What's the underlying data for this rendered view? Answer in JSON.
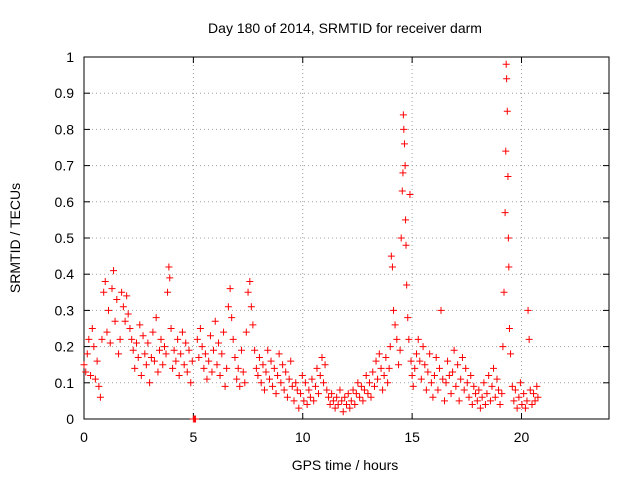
{
  "chart_data": {
    "type": "scatter",
    "title": "Day 180 of 2014, SRMTID for receiver darm",
    "xlabel": "GPS time / hours",
    "ylabel": "SRMTID / TECUs",
    "xlim": [
      0,
      24
    ],
    "ylim": [
      0,
      1
    ],
    "xticks": [
      0,
      5,
      10,
      15,
      20
    ],
    "xtick_labels": [
      "0",
      "5",
      "10",
      "15",
      "20"
    ],
    "yticks": [
      0,
      0.1,
      0.2,
      0.3,
      0.4,
      0.5,
      0.6,
      0.7,
      0.8,
      0.9,
      1
    ],
    "ytick_labels": [
      "0",
      "0.1",
      "0.2",
      "0.3",
      "0.4",
      "0.5",
      "0.6",
      "0.7",
      "0.8",
      "0.9",
      "1"
    ],
    "grid": true,
    "marker": "+",
    "color": "#ff0000",
    "series": [
      {
        "name": "SRMTID",
        "points": [
          [
            0.0,
            0.15
          ],
          [
            0.08,
            0.13
          ],
          [
            0.15,
            0.18
          ],
          [
            0.22,
            0.22
          ],
          [
            0.3,
            0.12
          ],
          [
            0.38,
            0.25
          ],
          [
            0.45,
            0.2
          ],
          [
            0.52,
            0.11
          ],
          [
            0.6,
            0.16
          ],
          [
            0.68,
            0.09
          ],
          [
            0.75,
            0.06
          ],
          [
            0.82,
            0.22
          ],
          [
            0.9,
            0.35
          ],
          [
            0.97,
            0.38
          ],
          [
            1.05,
            0.24
          ],
          [
            1.12,
            0.3
          ],
          [
            1.2,
            0.21
          ],
          [
            1.28,
            0.36
          ],
          [
            1.35,
            0.41
          ],
          [
            1.42,
            0.27
          ],
          [
            1.5,
            0.33
          ],
          [
            1.58,
            0.18
          ],
          [
            1.65,
            0.22
          ],
          [
            1.72,
            0.35
          ],
          [
            1.8,
            0.31
          ],
          [
            1.88,
            0.27
          ],
          [
            1.95,
            0.34
          ],
          [
            2.02,
            0.29
          ],
          [
            2.1,
            0.25
          ],
          [
            2.18,
            0.22
          ],
          [
            2.25,
            0.19
          ],
          [
            2.32,
            0.14
          ],
          [
            2.4,
            0.21
          ],
          [
            2.48,
            0.17
          ],
          [
            2.55,
            0.26
          ],
          [
            2.62,
            0.12
          ],
          [
            2.7,
            0.23
          ],
          [
            2.78,
            0.18
          ],
          [
            2.85,
            0.15
          ],
          [
            2.92,
            0.21
          ],
          [
            3.0,
            0.1
          ],
          [
            3.08,
            0.17
          ],
          [
            3.15,
            0.24
          ],
          [
            3.22,
            0.16
          ],
          [
            3.3,
            0.28
          ],
          [
            3.38,
            0.13
          ],
          [
            3.45,
            0.19
          ],
          [
            3.52,
            0.22
          ],
          [
            3.6,
            0.15
          ],
          [
            3.68,
            0.2
          ],
          [
            3.75,
            0.18
          ],
          [
            3.82,
            0.35
          ],
          [
            3.88,
            0.42
          ],
          [
            3.92,
            0.39
          ],
          [
            3.98,
            0.25
          ],
          [
            4.05,
            0.14
          ],
          [
            4.12,
            0.19
          ],
          [
            4.2,
            0.16
          ],
          [
            4.28,
            0.22
          ],
          [
            4.35,
            0.12
          ],
          [
            4.42,
            0.18
          ],
          [
            4.5,
            0.24
          ],
          [
            4.58,
            0.15
          ],
          [
            4.65,
            0.21
          ],
          [
            4.72,
            0.13
          ],
          [
            4.8,
            0.19
          ],
          [
            4.88,
            0.1
          ],
          [
            4.95,
            0.16
          ],
          [
            5.0,
            0.0
          ],
          [
            5.05,
            0.0
          ],
          [
            5.1,
            0.0
          ],
          [
            5.18,
            0.22
          ],
          [
            5.25,
            0.17
          ],
          [
            5.32,
            0.25
          ],
          [
            5.4,
            0.2
          ],
          [
            5.48,
            0.14
          ],
          [
            5.55,
            0.18
          ],
          [
            5.62,
            0.11
          ],
          [
            5.7,
            0.16
          ],
          [
            5.78,
            0.23
          ],
          [
            5.85,
            0.13
          ],
          [
            5.92,
            0.19
          ],
          [
            6.0,
            0.27
          ],
          [
            6.08,
            0.15
          ],
          [
            6.15,
            0.21
          ],
          [
            6.22,
            0.12
          ],
          [
            6.3,
            0.18
          ],
          [
            6.38,
            0.24
          ],
          [
            6.45,
            0.09
          ],
          [
            6.52,
            0.14
          ],
          [
            6.6,
            0.31
          ],
          [
            6.68,
            0.36
          ],
          [
            6.75,
            0.28
          ],
          [
            6.82,
            0.22
          ],
          [
            6.9,
            0.17
          ],
          [
            6.98,
            0.11
          ],
          [
            7.05,
            0.14
          ],
          [
            7.12,
            0.09
          ],
          [
            7.2,
            0.19
          ],
          [
            7.28,
            0.13
          ],
          [
            7.35,
            0.1
          ],
          [
            7.42,
            0.24
          ],
          [
            7.5,
            0.35
          ],
          [
            7.58,
            0.38
          ],
          [
            7.65,
            0.31
          ],
          [
            7.72,
            0.26
          ],
          [
            7.8,
            0.19
          ],
          [
            7.88,
            0.14
          ],
          [
            7.95,
            0.12
          ],
          [
            8.02,
            0.17
          ],
          [
            8.1,
            0.1
          ],
          [
            8.18,
            0.15
          ],
          [
            8.25,
            0.08
          ],
          [
            8.32,
            0.13
          ],
          [
            8.4,
            0.19
          ],
          [
            8.48,
            0.11
          ],
          [
            8.55,
            0.16
          ],
          [
            8.62,
            0.09
          ],
          [
            8.7,
            0.14
          ],
          [
            8.78,
            0.07
          ],
          [
            8.85,
            0.12
          ],
          [
            8.92,
            0.18
          ],
          [
            9.0,
            0.1
          ],
          [
            9.08,
            0.15
          ],
          [
            9.15,
            0.08
          ],
          [
            9.22,
            0.13
          ],
          [
            9.3,
            0.06
          ],
          [
            9.38,
            0.11
          ],
          [
            9.45,
            0.16
          ],
          [
            9.52,
            0.09
          ],
          [
            9.6,
            0.05
          ],
          [
            9.68,
            0.1
          ],
          [
            9.75,
            0.08
          ],
          [
            9.82,
            0.03
          ],
          [
            9.9,
            0.07
          ],
          [
            9.98,
            0.12
          ],
          [
            10.05,
            0.05
          ],
          [
            10.12,
            0.1
          ],
          [
            10.2,
            0.04
          ],
          [
            10.28,
            0.08
          ],
          [
            10.35,
            0.06
          ],
          [
            10.42,
            0.11
          ],
          [
            10.5,
            0.05
          ],
          [
            10.58,
            0.09
          ],
          [
            10.65,
            0.14
          ],
          [
            10.72,
            0.07
          ],
          [
            10.8,
            0.12
          ],
          [
            10.88,
            0.17
          ],
          [
            10.95,
            0.1
          ],
          [
            11.02,
            0.15
          ],
          [
            11.1,
            0.08
          ],
          [
            11.18,
            0.06
          ],
          [
            11.25,
            0.04
          ],
          [
            11.32,
            0.07
          ],
          [
            11.4,
            0.05
          ],
          [
            11.48,
            0.03
          ],
          [
            11.55,
            0.06
          ],
          [
            11.62,
            0.04
          ],
          [
            11.7,
            0.08
          ],
          [
            11.78,
            0.05
          ],
          [
            11.85,
            0.02
          ],
          [
            11.92,
            0.06
          ],
          [
            12.0,
            0.04
          ],
          [
            12.08,
            0.07
          ],
          [
            12.15,
            0.03
          ],
          [
            12.22,
            0.05
          ],
          [
            12.3,
            0.08
          ],
          [
            12.38,
            0.04
          ],
          [
            12.45,
            0.07
          ],
          [
            12.52,
            0.1
          ],
          [
            12.6,
            0.06
          ],
          [
            12.68,
            0.09
          ],
          [
            12.75,
            0.05
          ],
          [
            12.82,
            0.08
          ],
          [
            12.9,
            0.12
          ],
          [
            12.98,
            0.07
          ],
          [
            13.05,
            0.1
          ],
          [
            13.12,
            0.06
          ],
          [
            13.2,
            0.13
          ],
          [
            13.28,
            0.09
          ],
          [
            13.35,
            0.16
          ],
          [
            13.42,
            0.11
          ],
          [
            13.5,
            0.18
          ],
          [
            13.58,
            0.14
          ],
          [
            13.65,
            0.08
          ],
          [
            13.72,
            0.12
          ],
          [
            13.8,
            0.17
          ],
          [
            13.88,
            0.1
          ],
          [
            13.95,
            0.14
          ],
          [
            14.0,
            0.2
          ],
          [
            14.05,
            0.45
          ],
          [
            14.1,
            0.42
          ],
          [
            14.15,
            0.3
          ],
          [
            14.22,
            0.26
          ],
          [
            14.3,
            0.22
          ],
          [
            14.38,
            0.15
          ],
          [
            14.45,
            0.19
          ],
          [
            14.5,
            0.5
          ],
          [
            14.55,
            0.63
          ],
          [
            14.58,
            0.68
          ],
          [
            14.6,
            0.84
          ],
          [
            14.62,
            0.8
          ],
          [
            14.65,
            0.76
          ],
          [
            14.68,
            0.7
          ],
          [
            14.7,
            0.55
          ],
          [
            14.72,
            0.48
          ],
          [
            14.75,
            0.37
          ],
          [
            14.8,
            0.28
          ],
          [
            14.85,
            0.22
          ],
          [
            14.9,
            0.62
          ],
          [
            14.95,
            0.16
          ],
          [
            15.0,
            0.12
          ],
          [
            15.05,
            0.09
          ],
          [
            15.12,
            0.14
          ],
          [
            15.2,
            0.18
          ],
          [
            15.28,
            0.22
          ],
          [
            15.35,
            0.16
          ],
          [
            15.42,
            0.11
          ],
          [
            15.5,
            0.2
          ],
          [
            15.58,
            0.15
          ],
          [
            15.65,
            0.08
          ],
          [
            15.72,
            0.13
          ],
          [
            15.8,
            0.18
          ],
          [
            15.88,
            0.1
          ],
          [
            15.95,
            0.06
          ],
          [
            16.02,
            0.12
          ],
          [
            16.1,
            0.17
          ],
          [
            16.18,
            0.08
          ],
          [
            16.25,
            0.14
          ],
          [
            16.32,
            0.3
          ],
          [
            16.4,
            0.11
          ],
          [
            16.48,
            0.05
          ],
          [
            16.55,
            0.1
          ],
          [
            16.62,
            0.16
          ],
          [
            16.7,
            0.12
          ],
          [
            16.78,
            0.07
          ],
          [
            16.85,
            0.13
          ],
          [
            16.92,
            0.19
          ],
          [
            17.0,
            0.09
          ],
          [
            17.08,
            0.15
          ],
          [
            17.15,
            0.05
          ],
          [
            17.22,
            0.11
          ],
          [
            17.3,
            0.17
          ],
          [
            17.38,
            0.08
          ],
          [
            17.45,
            0.14
          ],
          [
            17.52,
            0.1
          ],
          [
            17.6,
            0.06
          ],
          [
            17.68,
            0.12
          ],
          [
            17.75,
            0.04
          ],
          [
            17.82,
            0.09
          ],
          [
            17.9,
            0.07
          ],
          [
            17.98,
            0.05
          ],
          [
            18.05,
            0.08
          ],
          [
            18.12,
            0.03
          ],
          [
            18.2,
            0.06
          ],
          [
            18.28,
            0.1
          ],
          [
            18.35,
            0.04
          ],
          [
            18.42,
            0.07
          ],
          [
            18.5,
            0.12
          ],
          [
            18.58,
            0.05
          ],
          [
            18.65,
            0.09
          ],
          [
            18.72,
            0.14
          ],
          [
            18.8,
            0.06
          ],
          [
            18.88,
            0.11
          ],
          [
            18.95,
            0.08
          ],
          [
            19.02,
            0.04
          ],
          [
            19.1,
            0.07
          ],
          [
            19.15,
            0.2
          ],
          [
            19.2,
            0.35
          ],
          [
            19.25,
            0.57
          ],
          [
            19.28,
            0.74
          ],
          [
            19.3,
            0.98
          ],
          [
            19.32,
            0.94
          ],
          [
            19.35,
            0.85
          ],
          [
            19.38,
            0.67
          ],
          [
            19.4,
            0.5
          ],
          [
            19.42,
            0.42
          ],
          [
            19.45,
            0.25
          ],
          [
            19.5,
            0.18
          ],
          [
            19.58,
            0.09
          ],
          [
            19.65,
            0.05
          ],
          [
            19.72,
            0.08
          ],
          [
            19.8,
            0.03
          ],
          [
            19.88,
            0.06
          ],
          [
            19.95,
            0.1
          ],
          [
            20.02,
            0.04
          ],
          [
            20.1,
            0.07
          ],
          [
            20.18,
            0.03
          ],
          [
            20.25,
            0.05
          ],
          [
            20.3,
            0.3
          ],
          [
            20.35,
            0.22
          ],
          [
            20.4,
            0.08
          ],
          [
            20.48,
            0.04
          ],
          [
            20.55,
            0.07
          ],
          [
            20.62,
            0.05
          ],
          [
            20.7,
            0.09
          ],
          [
            20.75,
            0.06
          ]
        ]
      }
    ]
  }
}
